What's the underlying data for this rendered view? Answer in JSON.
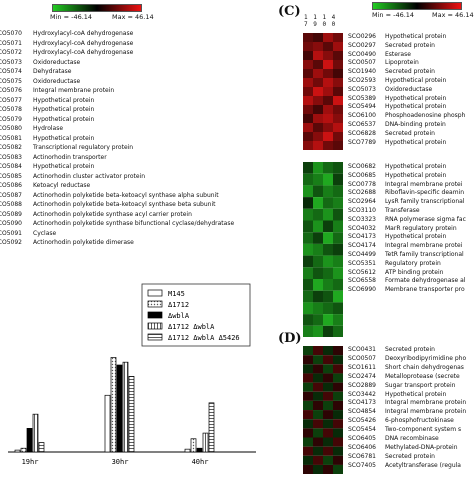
{
  "colors": {
    "green": "#2ec02e",
    "red": "#e01010",
    "black": "#000000",
    "bg": "#ffffff"
  },
  "scale_left": {
    "min_label": "Min = -46.14",
    "max_label": "Max = 46.14"
  },
  "scale_right": {
    "min_label": "Min = -46.14",
    "max_label": "Max = 46.14"
  },
  "panel_c_label": "(C)",
  "panel_d_label": "(D)",
  "col_headers": [
    "1 1 1 4",
    "7 9 0 0",
    "1 1 2 2",
    "2 0 0 0"
  ],
  "left_genes": [
    {
      "id": "SCO5070",
      "desc": "Hydroxylacyl-coA dehydrogenase"
    },
    {
      "id": "SCO5071",
      "desc": "Hydroxylacyl-coA dehydrogenase"
    },
    {
      "id": "SCO5072",
      "desc": "Hydroxylacyl-coA dehydrogenase"
    },
    {
      "id": "SCO5073",
      "desc": "Oxidoreductase"
    },
    {
      "id": "SCO5074",
      "desc": "Dehydratase"
    },
    {
      "id": "SCO5075",
      "desc": "Oxidoreductase"
    },
    {
      "id": "SCO5076",
      "desc": "Integral membrane protein"
    },
    {
      "id": "SCO5077",
      "desc": "Hypothetical protein"
    },
    {
      "id": "SCO5078",
      "desc": "Hypothetical protein"
    },
    {
      "id": "SCO5079",
      "desc": "Hypothetical protein"
    },
    {
      "id": "SCO5080",
      "desc": "Hydrolase"
    },
    {
      "id": "SCO5081",
      "desc": "Hypothetical protein"
    },
    {
      "id": "SCO5082",
      "desc": "Transcriptional regulatory protein"
    },
    {
      "id": "SCO5083",
      "desc": "Actinorhodin transporter"
    },
    {
      "id": "SCO5084",
      "desc": "Hypothetical protein"
    },
    {
      "id": "SCO5085",
      "desc": "Actinorhodin cluster activator protein"
    },
    {
      "id": "SCO5086",
      "desc": "Ketoacyl reductase"
    },
    {
      "id": "SCO5087",
      "desc": "Actinorhodin polyketide beta-ketoacyl synthase alpha subunit"
    },
    {
      "id": "SCO5088",
      "desc": "Actinorhodin polyketide beta-ketoacyl synthase beta subunit"
    },
    {
      "id": "SCO5089",
      "desc": "Actinorhodin polyketide synthase acyl carrier protein"
    },
    {
      "id": "SCO5090",
      "desc": "Actinorhodin polyketide synthase bifunctional cyclase/dehydratase"
    },
    {
      "id": "SCO5091",
      "desc": "Cyclase"
    },
    {
      "id": "SCO5092",
      "desc": "Actinorhodin polyketide dimerase"
    }
  ],
  "c_genes_top": [
    {
      "id": "SCO0296",
      "desc": "Hypothetical protein"
    },
    {
      "id": "SCO0297",
      "desc": "Secreted protein"
    },
    {
      "id": "SCO0490",
      "desc": "Esterase"
    },
    {
      "id": "SCO0507",
      "desc": "Lipoprotein"
    },
    {
      "id": "SCO1940",
      "desc": "Secreted protein"
    },
    {
      "id": "SCO2593",
      "desc": "Hypothetical protein"
    },
    {
      "id": "SCO5073",
      "desc": "Oxidoreductase"
    },
    {
      "id": "SCO5389",
      "desc": "Hypothetical protein"
    },
    {
      "id": "SCO5494",
      "desc": "Hypothetical protein"
    },
    {
      "id": "SCO6100",
      "desc": "Phosphoadenosine phosph"
    },
    {
      "id": "SCO6537",
      "desc": "DNA-binding protein"
    },
    {
      "id": "SCO6828",
      "desc": "Secreted protein"
    },
    {
      "id": "SCO7789",
      "desc": "Hypothetical protein"
    }
  ],
  "c_genes_bottom": [
    {
      "id": "SCO0682",
      "desc": "Hypothetical protein"
    },
    {
      "id": "SCO0685",
      "desc": "Hypothetical protein"
    },
    {
      "id": "SCO0778",
      "desc": "Integral membrane protei"
    },
    {
      "id": "SCO2688",
      "desc": "Riboflavin-specific deamin"
    },
    {
      "id": "SCO2964",
      "desc": "LysR family transcriptional"
    },
    {
      "id": "SCO3110",
      "desc": "Transferase"
    },
    {
      "id": "SCO3323",
      "desc": "RNA polymerase sigma fac"
    },
    {
      "id": "SCO4032",
      "desc": "MarR regulatory protein"
    },
    {
      "id": "SCO4173",
      "desc": "Hypothetical protein"
    },
    {
      "id": "SCO4174",
      "desc": "Integral membrane protei"
    },
    {
      "id": "SCO4499",
      "desc": "TetR family transcriptional"
    },
    {
      "id": "SCO5351",
      "desc": "Regulatory protein"
    },
    {
      "id": "SCO5612",
      "desc": "ATP binding protein"
    },
    {
      "id": "SCO6558",
      "desc": "Formate dehydrogenase al"
    },
    {
      "id": "SCO6990",
      "desc": "Membrane transporter pro"
    }
  ],
  "d_genes": [
    {
      "id": "SCO0431",
      "desc": "Secreted protein"
    },
    {
      "id": "SCO0507",
      "desc": "Deoxyribodipyrimidine pho"
    },
    {
      "id": "SCO1611",
      "desc": "Short chain dehydrogenas"
    },
    {
      "id": "SCO2474",
      "desc": "Metalloprotease (secrete"
    },
    {
      "id": "SCO2889",
      "desc": "Sugar transport protein"
    },
    {
      "id": "SCO3442",
      "desc": "Hypothetical protein"
    },
    {
      "id": "SCO4173",
      "desc": "Integral membrane protein"
    },
    {
      "id": "SCO4854",
      "desc": "Integral membrane protein"
    },
    {
      "id": "SCO5426",
      "desc": "6-phosphofructokinase"
    },
    {
      "id": "SCO5454",
      "desc": "Two-component system s"
    },
    {
      "id": "SCO6405",
      "desc": "DNA recombinase"
    },
    {
      "id": "SCO6406",
      "desc": "Methylated-DNA-protein"
    },
    {
      "id": "SCO6781",
      "desc": "Secreted protein"
    },
    {
      "id": "SCO7405",
      "desc": "Acetyltransferase (regula"
    }
  ],
  "chart_data": {
    "type": "bar",
    "categories": [
      "19hr",
      "30hr",
      "40hr"
    ],
    "series": [
      {
        "name": "M145",
        "values": [
          2,
          60,
          3
        ]
      },
      {
        "name": "Δ1712",
        "values": [
          4,
          100,
          14
        ]
      },
      {
        "name": "ΔwblA",
        "values": [
          25,
          92,
          4
        ]
      },
      {
        "name": "Δ1712 ΔwblA",
        "values": [
          40,
          95,
          20
        ]
      },
      {
        "name": "Δ1712 ΔwblA Δ5426",
        "values": [
          10,
          80,
          52
        ]
      }
    ],
    "ylim": [
      0,
      110
    ]
  }
}
